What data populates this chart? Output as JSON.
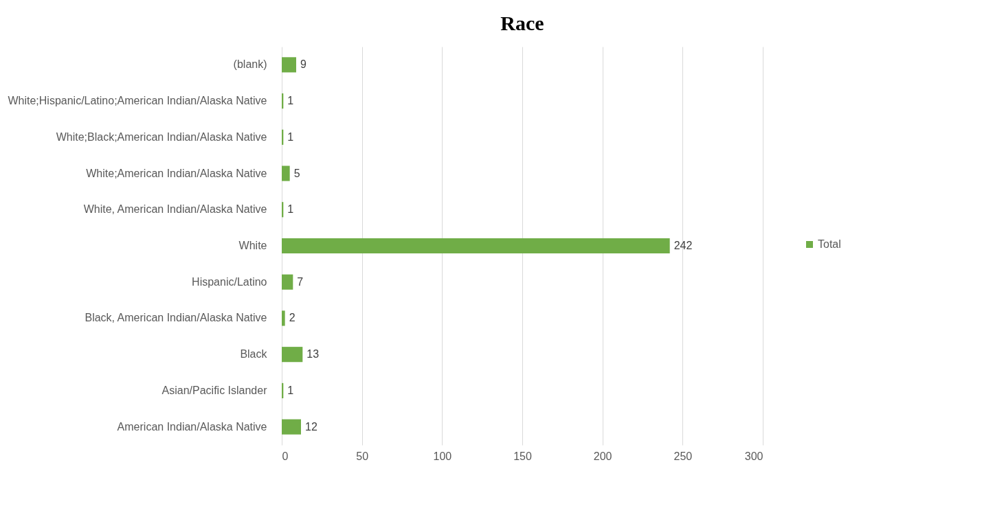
{
  "chart_data": {
    "type": "bar",
    "orientation": "horizontal",
    "title": "Race",
    "categories": [
      "(blank)",
      "White;Hispanic/Latino;American Indian/Alaska Native",
      "White;Black;American Indian/Alaska Native",
      "White;American Indian/Alaska Native",
      "White, American Indian/Alaska Native",
      "White",
      "Hispanic/Latino",
      "Black, American Indian/Alaska Native",
      "Black",
      "Asian/Pacific Islander",
      "American Indian/Alaska Native"
    ],
    "series": [
      {
        "name": "Total",
        "color": "#70ad47",
        "values": [
          9,
          1,
          1,
          5,
          1,
          242,
          7,
          2,
          13,
          1,
          12
        ]
      }
    ],
    "xlim": [
      0,
      300
    ],
    "xticks": [
      0,
      50,
      100,
      150,
      200,
      250,
      300
    ],
    "grid": "x",
    "legend": "right",
    "data_labels": true
  }
}
